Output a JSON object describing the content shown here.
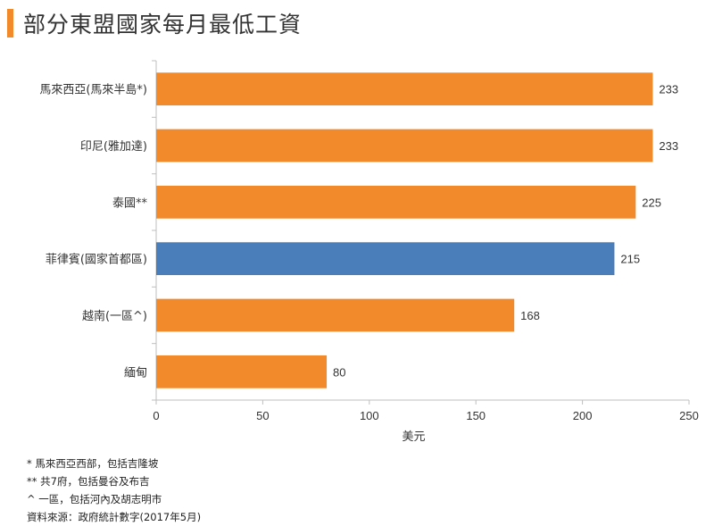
{
  "page": {
    "title": "部分東盟國家每月最低工資"
  },
  "chart_data": {
    "type": "bar",
    "orientation": "horizontal",
    "title": "部分東盟國家每月最低工資",
    "categories": [
      "馬來西亞(馬來半島*)",
      "印尼(雅加達)",
      "泰國**",
      "菲律賓(國家首都區)",
      "越南(一區^)",
      "緬甸"
    ],
    "values": [
      233,
      233,
      225,
      215,
      168,
      80
    ],
    "highlight_index": 3,
    "colors": {
      "default": "#f28a2b",
      "highlight": "#4a7ebb"
    },
    "xlabel": "美元",
    "ylabel": "",
    "xlim": [
      0,
      250
    ],
    "xticks": [
      0,
      50,
      100,
      150,
      200,
      250
    ],
    "grid": false
  },
  "footnotes": [
    "* 馬來西亞西部，包括吉隆坡",
    "** 共7府，包括曼谷及布吉",
    "^ 一區，包括河內及胡志明市",
    "資料來源：政府統計數字(2017年5月)"
  ]
}
